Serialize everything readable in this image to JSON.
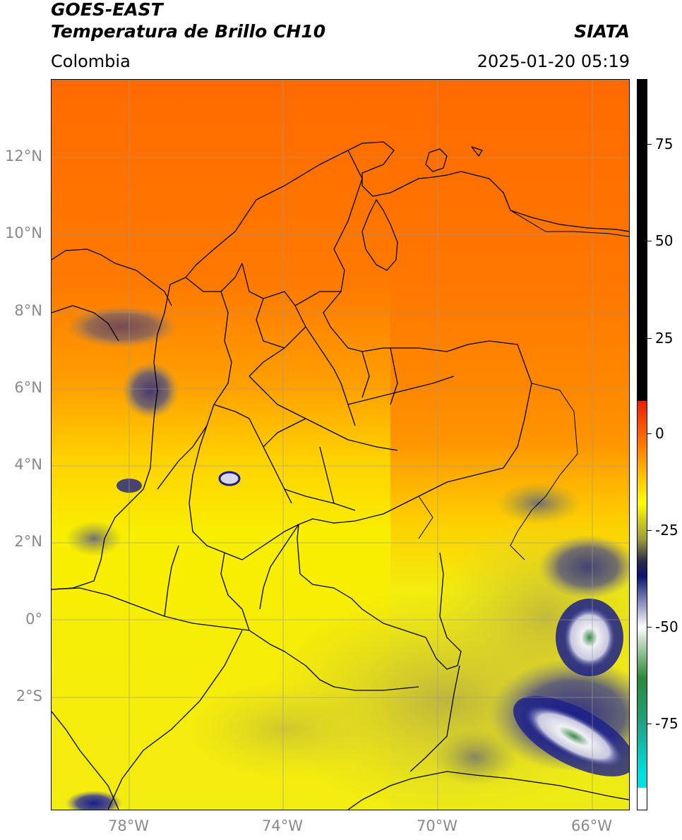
{
  "header": {
    "satellite": "GOES-EAST",
    "product": "Temperatura de Brillo CH10",
    "brand": "SIATA",
    "region": "Colombia",
    "timestamp": "2025-01-20 05:19"
  },
  "axes": {
    "lat_labels": [
      "12°N",
      "10°N",
      "8°N",
      "6°N",
      "4°N",
      "2°N",
      "0°",
      "2°S"
    ],
    "lon_labels": [
      "78°W",
      "74°W",
      "70°W",
      "66°W"
    ]
  },
  "colorbar": {
    "labels": [
      "75",
      "50",
      "25",
      "0",
      "-25",
      "-50",
      "-75"
    ],
    "colors": {
      "black": "#000000",
      "red": "#e8200a",
      "orange": "#ff7a00",
      "yellow": "#ffff00",
      "olive": "#9a9a3a",
      "navy": "#0a1470",
      "white": "#ffffff",
      "green": "#2a8a3a",
      "cyan": "#00e0e0"
    }
  },
  "map_colors": {
    "north_orange": "#ff6a00",
    "mid_orange": "#ffa000",
    "south_yellow": "#f5ef10",
    "olive": "#c8c240",
    "cloud_navy": "#1a1e8a",
    "cloud_white": "#f2f2f5",
    "cloud_green": "#3a8a4a"
  }
}
